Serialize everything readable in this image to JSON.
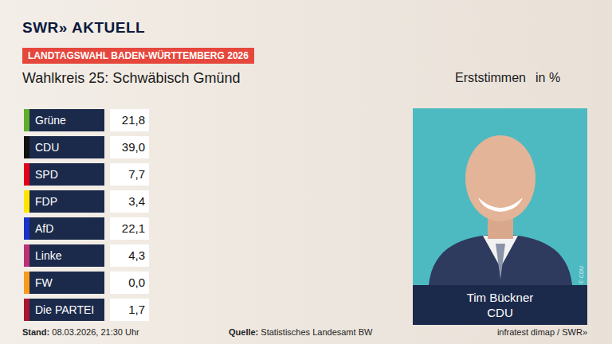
{
  "header": {
    "logo": "SWR» AKTUELL",
    "banner": "LANDTAGSWAHL BADEN-WÜRTTEMBERG 2026",
    "title": "Wahlkreis 25: Schwäbisch Gmünd",
    "measure": "Erststimmen",
    "unit": "in %"
  },
  "chart_data": {
    "type": "table",
    "categories": [
      "Grüne",
      "CDU",
      "SPD",
      "FDP",
      "AfD",
      "Linke",
      "FW",
      "Die PARTEI"
    ],
    "values": [
      21.8,
      39.0,
      7.7,
      3.4,
      22.1,
      4.3,
      0.0,
      1.7
    ],
    "value_labels": [
      "21,8",
      "39,0",
      "7,7",
      "3,4",
      "22,1",
      "4,3",
      "0,0",
      "1,7"
    ],
    "colors": [
      "#5fae2e",
      "#111111",
      "#e2001a",
      "#ffe500",
      "#1733c9",
      "#be3075",
      "#f79a1e",
      "#a8162f"
    ],
    "data_labels": true
  },
  "candidate": {
    "name": "Tim Bückner",
    "party": "CDU",
    "photo_credit": "© CDU"
  },
  "footer": {
    "stand_label": "Stand:",
    "stand": "08.03.2026, 21:30 Uhr",
    "source_label": "Quelle:",
    "source": "Statistisches Landesamt BW",
    "credit": "infratest dimap / SWR»"
  }
}
